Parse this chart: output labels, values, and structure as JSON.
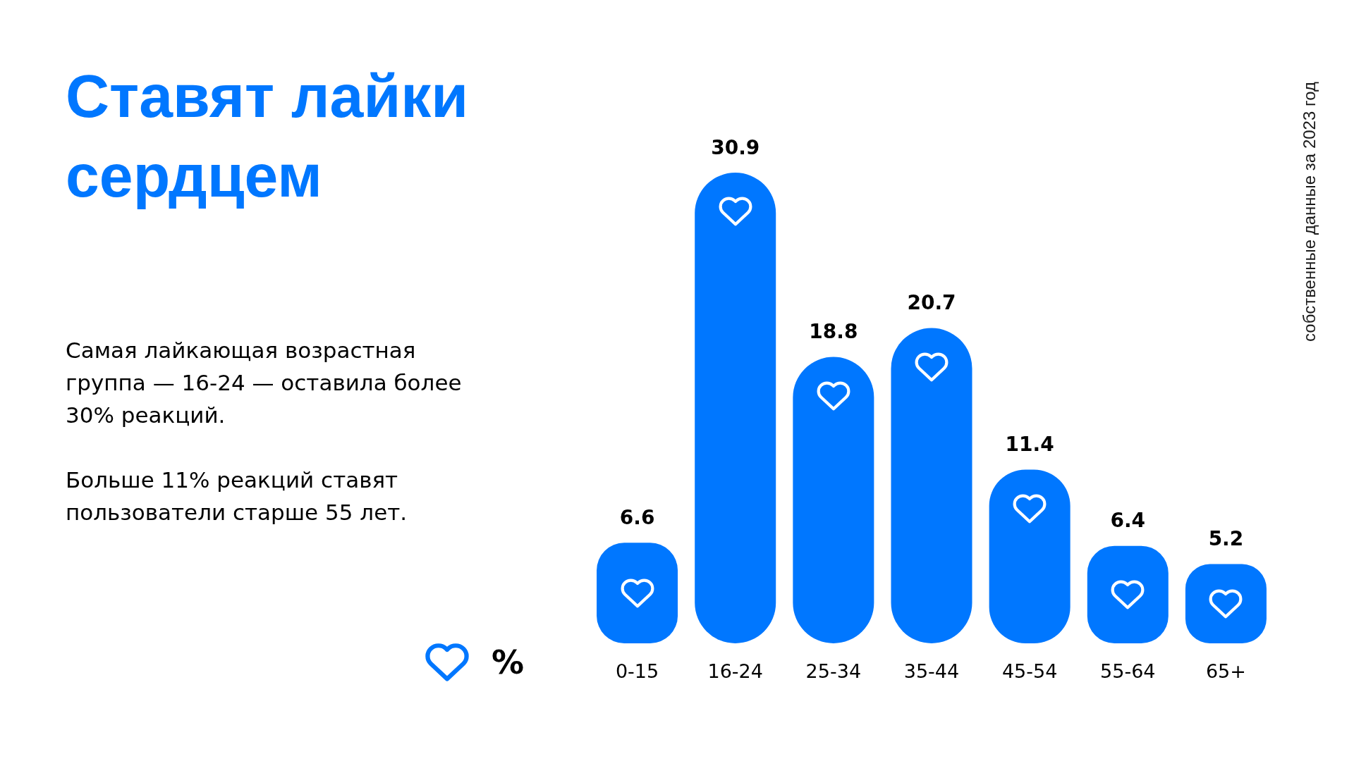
{
  "chart_data": {
    "type": "bar",
    "title": "Ставят лайки сердцем",
    "categories": [
      "0-15",
      "16-24",
      "25-34",
      "35-44",
      "45-54",
      "55-64",
      "65+"
    ],
    "values": [
      6.6,
      30.9,
      18.8,
      20.7,
      11.4,
      6.4,
      5.2
    ],
    "color": "#0077ff",
    "data_labels": true,
    "ylabel": "%",
    "annotations": [
      "Самая лайкающая возрастная группа — 16-24 — оставила более 30% реакций.",
      "Больше 11% реакций ставят пользователи старше 55 лет.",
      "собственные данные за 2023 год"
    ]
  }
}
